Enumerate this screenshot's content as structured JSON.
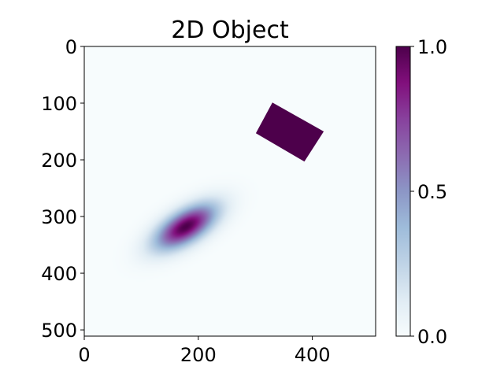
{
  "chart_data": {
    "type": "heatmap",
    "title": "2D Object",
    "xlabel": "",
    "ylabel": "",
    "xlim": [
      0,
      511
    ],
    "ylim": [
      511,
      0
    ],
    "x_ticks": [
      "0",
      "200",
      "400"
    ],
    "y_ticks": [
      "0",
      "100",
      "200",
      "300",
      "400",
      "500"
    ],
    "colormap": "BuPu",
    "colormap_stops": [
      "#f7fcfd",
      "#e0ecf4",
      "#bfd3e6",
      "#9ebcda",
      "#8c96c6",
      "#8c6bb1",
      "#88419d",
      "#810f7c",
      "#4d004b"
    ],
    "colorbar": {
      "range": [
        0.0,
        1.0
      ],
      "ticks": [
        "0.0",
        "0.5",
        "1.0"
      ]
    },
    "objects": [
      {
        "kind": "gaussian-blob",
        "center": [
          178,
          318
        ],
        "sigma_major": 42,
        "sigma_minor": 19,
        "orientation_deg": -32,
        "peak_value": 1.0
      },
      {
        "kind": "filled-rectangle",
        "corners": [
          [
            330,
            99
          ],
          [
            420,
            150
          ],
          [
            386,
            203
          ],
          [
            301,
            153
          ]
        ],
        "value": 1.0
      }
    ]
  }
}
